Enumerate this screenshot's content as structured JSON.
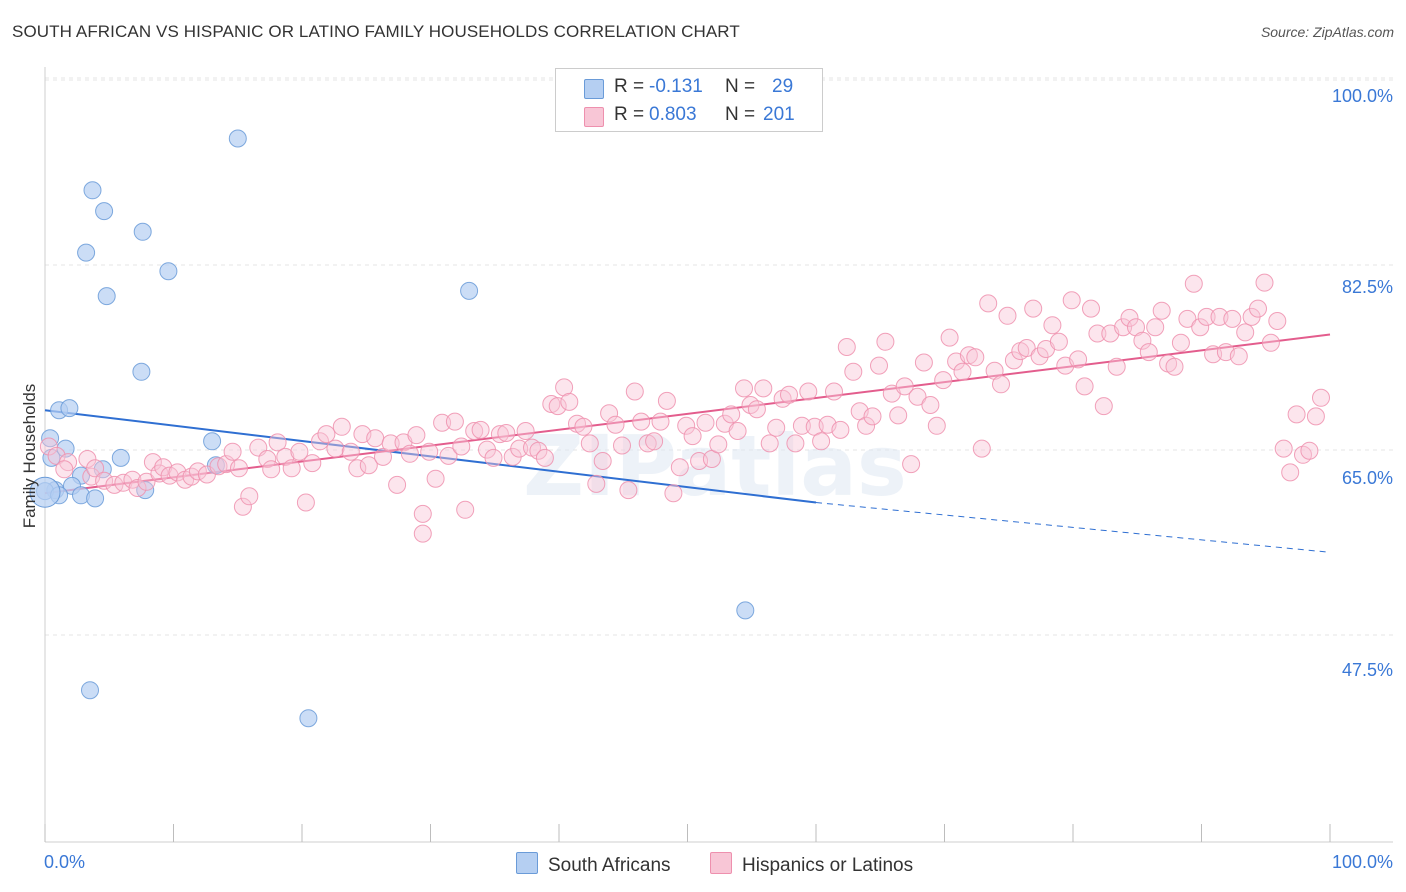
{
  "chart_data": {
    "type": "scatter",
    "title": "SOUTH AFRICAN VS HISPANIC OR LATINO FAMILY HOUSEHOLDS CORRELATION CHART",
    "source": "Source: ZipAtlas.com",
    "ylabel": "Family Households",
    "xlabel": "",
    "xlim": [
      0,
      100
    ],
    "ylim": [
      29,
      102.5
    ],
    "x_tick_labels": {
      "left": "0.0%",
      "right": "100.0%"
    },
    "y_ticks": [
      {
        "value": 100,
        "label": "100.0%"
      },
      {
        "value": 82.5,
        "label": "82.5%"
      },
      {
        "value": 65,
        "label": "65.0%"
      },
      {
        "value": 47.5,
        "label": "47.5%"
      }
    ],
    "grid": true,
    "watermark": "ZIPatlas",
    "legend": {
      "r_label": "R =",
      "n_label": "N =",
      "entries": [
        {
          "name": "South Africans",
          "r": "-0.131",
          "n": "29",
          "color": "#a9c8f0"
        },
        {
          "name": "Hispanics or Latinos",
          "r": "0.803",
          "n": "201",
          "color": "#f6b3c8"
        }
      ]
    },
    "series": [
      {
        "name": "South Africans",
        "color": "#6a9bd8",
        "fill": "#b5cff2",
        "trend": {
          "x0": 0,
          "y0": 69.8,
          "x1": 60,
          "y1": 60.9,
          "dash_to_x": 100,
          "dash_to_y": 56.1,
          "color": "#2f6fd2"
        },
        "points": [
          [
            15,
            96
          ],
          [
            3.7,
            91
          ],
          [
            4.6,
            89
          ],
          [
            7.6,
            87
          ],
          [
            3.2,
            85
          ],
          [
            9.6,
            83.2
          ],
          [
            4.8,
            80.8
          ],
          [
            33,
            81.3
          ],
          [
            7.5,
            73.5
          ],
          [
            1.1,
            69.8
          ],
          [
            1.9,
            70
          ],
          [
            0.4,
            67.1
          ],
          [
            1.6,
            66.1
          ],
          [
            0.5,
            65.2
          ],
          [
            5.9,
            65.2
          ],
          [
            13,
            66.8
          ],
          [
            13.3,
            64.5
          ],
          [
            4.5,
            64.1
          ],
          [
            2.8,
            63.5
          ],
          [
            2.1,
            62.5
          ],
          [
            0.8,
            62.1
          ],
          [
            0,
            62
          ],
          [
            2.8,
            61.6
          ],
          [
            3.9,
            61.3
          ],
          [
            7.8,
            62.1
          ],
          [
            1.1,
            61.6
          ],
          [
            54.5,
            50.5
          ],
          [
            3.5,
            42.8
          ],
          [
            20.5,
            40.1
          ]
        ],
        "large_point": [
          0,
          61.9
        ]
      },
      {
        "name": "Hispanics or Latinos",
        "color": "#ee90ae",
        "fill": "#f8c6d6",
        "trend": {
          "x0": 0,
          "y0": 61.8,
          "x1": 100,
          "y1": 77.1,
          "color": "#e35d8d"
        },
        "points": [
          [
            0.3,
            66.3
          ],
          [
            0.9,
            65.4
          ],
          [
            1.8,
            64.8
          ],
          [
            1.5,
            64.1
          ],
          [
            3.3,
            65.1
          ],
          [
            3.6,
            63.4
          ],
          [
            3.9,
            64.2
          ],
          [
            4.6,
            63
          ],
          [
            5.4,
            62.6
          ],
          [
            6.1,
            62.8
          ],
          [
            6.8,
            63.1
          ],
          [
            7.2,
            62.3
          ],
          [
            7.9,
            62.9
          ],
          [
            8.4,
            64.8
          ],
          [
            8.9,
            63.7
          ],
          [
            9.2,
            64.3
          ],
          [
            9.7,
            63.5
          ],
          [
            10.3,
            63.8
          ],
          [
            10.9,
            63.1
          ],
          [
            11.4,
            63.4
          ],
          [
            11.9,
            63.9
          ],
          [
            12.6,
            63.6
          ],
          [
            13.5,
            64.4
          ],
          [
            14.1,
            64.6
          ],
          [
            14.6,
            65.8
          ],
          [
            15.1,
            64.2
          ],
          [
            15.4,
            60.5
          ],
          [
            15.9,
            61.5
          ],
          [
            16.6,
            66.2
          ],
          [
            17.3,
            65.1
          ],
          [
            17.6,
            64.1
          ],
          [
            18.1,
            66.7
          ],
          [
            18.7,
            65.3
          ],
          [
            19.2,
            64.2
          ],
          [
            19.8,
            65.8
          ],
          [
            20.3,
            60.9
          ],
          [
            20.8,
            64.7
          ],
          [
            21.4,
            66.8
          ],
          [
            21.9,
            67.5
          ],
          [
            22.6,
            66.1
          ],
          [
            23.1,
            68.2
          ],
          [
            23.8,
            65.8
          ],
          [
            24.3,
            64.2
          ],
          [
            24.7,
            67.5
          ],
          [
            25.2,
            64.5
          ],
          [
            25.7,
            67.1
          ],
          [
            26.3,
            65.3
          ],
          [
            26.9,
            66.6
          ],
          [
            27.4,
            62.6
          ],
          [
            27.9,
            66.7
          ],
          [
            28.4,
            65.6
          ],
          [
            28.9,
            67.4
          ],
          [
            29.4,
            59.8
          ],
          [
            29.4,
            57.9
          ],
          [
            29.9,
            65.8
          ],
          [
            30.4,
            63.2
          ],
          [
            30.9,
            68.6
          ],
          [
            31.4,
            65.4
          ],
          [
            31.9,
            68.7
          ],
          [
            32.4,
            66.3
          ],
          [
            32.7,
            60.2
          ],
          [
            33.4,
            67.8
          ],
          [
            33.9,
            67.9
          ],
          [
            34.4,
            66
          ],
          [
            34.9,
            65.2
          ],
          [
            35.4,
            67.5
          ],
          [
            35.9,
            67.6
          ],
          [
            36.4,
            65.3
          ],
          [
            36.9,
            66.1
          ],
          [
            37.4,
            67.8
          ],
          [
            37.9,
            66.2
          ],
          [
            38.4,
            65.9
          ],
          [
            38.9,
            65.2
          ],
          [
            39.4,
            70.4
          ],
          [
            39.9,
            70.2
          ],
          [
            40.4,
            72
          ],
          [
            40.8,
            70.6
          ],
          [
            41.4,
            68.5
          ],
          [
            41.9,
            68.2
          ],
          [
            42.4,
            66.6
          ],
          [
            42.9,
            62.7
          ],
          [
            43.4,
            64.9
          ],
          [
            43.9,
            69.5
          ],
          [
            44.4,
            68.4
          ],
          [
            44.9,
            66.4
          ],
          [
            45.4,
            62.1
          ],
          [
            45.9,
            71.6
          ],
          [
            46.4,
            68.7
          ],
          [
            46.9,
            66.6
          ],
          [
            47.4,
            66.8
          ],
          [
            47.9,
            68.7
          ],
          [
            48.4,
            70.7
          ],
          [
            48.9,
            61.8
          ],
          [
            49.4,
            64.3
          ],
          [
            49.9,
            68.3
          ],
          [
            50.4,
            67.3
          ],
          [
            50.9,
            64.9
          ],
          [
            51.4,
            68.6
          ],
          [
            51.9,
            65.1
          ],
          [
            52.4,
            66.5
          ],
          [
            52.9,
            68.5
          ],
          [
            53.4,
            69.4
          ],
          [
            53.9,
            67.8
          ],
          [
            54.4,
            71.9
          ],
          [
            54.9,
            70.3
          ],
          [
            55.4,
            69.9
          ],
          [
            55.9,
            71.9
          ],
          [
            56.4,
            66.6
          ],
          [
            56.9,
            68.1
          ],
          [
            57.4,
            70.9
          ],
          [
            57.9,
            71.3
          ],
          [
            58.4,
            66.6
          ],
          [
            58.9,
            68.3
          ],
          [
            59.4,
            71.6
          ],
          [
            59.9,
            68.2
          ],
          [
            60.4,
            66.8
          ],
          [
            60.9,
            68.4
          ],
          [
            61.4,
            71.6
          ],
          [
            61.9,
            67.9
          ],
          [
            62.4,
            75.9
          ],
          [
            62.9,
            73.5
          ],
          [
            63.4,
            69.7
          ],
          [
            63.9,
            68.3
          ],
          [
            64.4,
            69.2
          ],
          [
            64.9,
            74.1
          ],
          [
            65.4,
            76.4
          ],
          [
            65.9,
            71.4
          ],
          [
            66.4,
            69.3
          ],
          [
            66.9,
            72.1
          ],
          [
            67.4,
            64.6
          ],
          [
            67.9,
            71.1
          ],
          [
            68.4,
            74.4
          ],
          [
            68.9,
            70.3
          ],
          [
            69.4,
            68.3
          ],
          [
            69.9,
            72.7
          ],
          [
            70.4,
            76.8
          ],
          [
            70.9,
            74.5
          ],
          [
            71.4,
            73.5
          ],
          [
            71.9,
            75.1
          ],
          [
            72.4,
            74.9
          ],
          [
            72.9,
            66.1
          ],
          [
            73.4,
            80.1
          ],
          [
            73.9,
            73.6
          ],
          [
            74.4,
            72.3
          ],
          [
            74.9,
            78.9
          ],
          [
            75.4,
            74.6
          ],
          [
            75.9,
            75.5
          ],
          [
            76.4,
            75.8
          ],
          [
            76.9,
            79.6
          ],
          [
            77.4,
            75
          ],
          [
            77.9,
            75.7
          ],
          [
            78.4,
            78
          ],
          [
            78.9,
            76.4
          ],
          [
            79.4,
            74.1
          ],
          [
            79.9,
            80.4
          ],
          [
            80.4,
            74.7
          ],
          [
            80.9,
            72.1
          ],
          [
            81.4,
            79.6
          ],
          [
            81.9,
            77.2
          ],
          [
            82.4,
            70.2
          ],
          [
            82.9,
            77.2
          ],
          [
            83.4,
            74
          ],
          [
            83.9,
            77.8
          ],
          [
            84.4,
            78.7
          ],
          [
            84.9,
            77.8
          ],
          [
            85.4,
            76.5
          ],
          [
            85.9,
            75.4
          ],
          [
            86.4,
            77.8
          ],
          [
            86.9,
            79.4
          ],
          [
            87.4,
            74.3
          ],
          [
            87.9,
            74
          ],
          [
            88.4,
            76.3
          ],
          [
            88.9,
            78.6
          ],
          [
            89.4,
            82
          ],
          [
            89.9,
            77.8
          ],
          [
            90.4,
            78.8
          ],
          [
            90.9,
            75.2
          ],
          [
            91.4,
            78.8
          ],
          [
            91.9,
            75.4
          ],
          [
            92.4,
            78.6
          ],
          [
            92.9,
            75
          ],
          [
            93.4,
            77.3
          ],
          [
            93.9,
            78.8
          ],
          [
            94.4,
            79.6
          ],
          [
            94.9,
            82.1
          ],
          [
            95.4,
            76.3
          ],
          [
            95.9,
            78.4
          ],
          [
            96.4,
            66.1
          ],
          [
            96.9,
            63.8
          ],
          [
            97.4,
            69.4
          ],
          [
            97.9,
            65.5
          ],
          [
            98.4,
            65.9
          ],
          [
            98.9,
            69.2
          ],
          [
            99.3,
            71
          ]
        ]
      }
    ]
  }
}
